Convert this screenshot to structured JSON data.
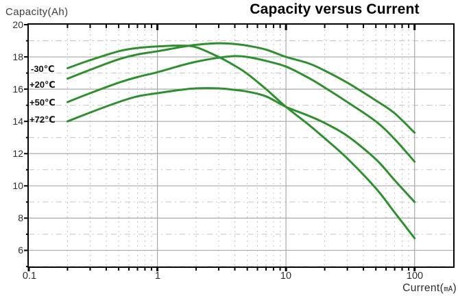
{
  "title": "Capacity versus Current",
  "y_axis_label": "Capacity(Ah)",
  "x_axis_label": {
    "prefix": "Current(",
    "unit": "mA",
    "suffix": ")"
  },
  "y_ticks": [
    "20",
    "18",
    "16",
    "14",
    "12",
    "10",
    "8",
    "6"
  ],
  "x_ticks": [
    "0.1",
    "1",
    "10",
    "100"
  ],
  "legend": {
    "items": [
      {
        "label": "-30℃"
      },
      {
        "label": "+20℃"
      },
      {
        "label": "+50℃"
      },
      {
        "label": "+72℃"
      }
    ]
  },
  "colors": {
    "curve_green": "#2f8f2f",
    "grid_major": "#a8a8a8",
    "grid_minor": "#c3c3c3",
    "axis_frame": "#000000",
    "title_text": "#000000",
    "axis_text": "#2d2d2d",
    "label_text": "#3c3c3c"
  },
  "chart_data": {
    "type": "line",
    "title": "Capacity versus Current",
    "xlabel": "Current(mA)",
    "ylabel": "Capacity(Ah)",
    "x_scale": "log",
    "xlim": [
      0.1,
      200
    ],
    "ylim": [
      5,
      20
    ],
    "grid": {
      "major_lines": "solid gray at decades and even Ah values",
      "minor_lines": "dashed light gray"
    },
    "legend_position": "inline labels at left ends of curves",
    "x": [
      0.2,
      0.3,
      0.5,
      0.7,
      1,
      1.5,
      2,
      3,
      4,
      5,
      7,
      10,
      15,
      20,
      30,
      50,
      70,
      100
    ],
    "series": [
      {
        "name": "-30℃",
        "key": "curve-minus-30c",
        "values": [
          17.3,
          17.8,
          18.35,
          18.55,
          18.65,
          18.7,
          18.6,
          18.0,
          17.45,
          16.95,
          16.0,
          14.9,
          13.8,
          12.95,
          11.7,
          9.85,
          8.35,
          6.75
        ]
      },
      {
        "name": "+20℃",
        "key": "curve-plus-20c",
        "values": [
          16.65,
          17.2,
          17.85,
          18.15,
          18.35,
          18.6,
          18.75,
          18.85,
          18.8,
          18.7,
          18.45,
          18.0,
          17.6,
          17.15,
          16.4,
          15.3,
          14.5,
          13.3
        ]
      },
      {
        "name": "+50℃",
        "key": "curve-plus-50c",
        "values": [
          15.2,
          15.75,
          16.4,
          16.75,
          17.05,
          17.45,
          17.7,
          17.95,
          18.05,
          18.0,
          17.75,
          17.4,
          16.7,
          16.1,
          15.2,
          14.0,
          12.9,
          11.5
        ]
      },
      {
        "name": "+72℃",
        "key": "curve-plus-72c",
        "values": [
          14.0,
          14.55,
          15.2,
          15.55,
          15.75,
          15.95,
          16.05,
          16.05,
          15.95,
          15.85,
          15.55,
          14.9,
          14.35,
          13.9,
          13.1,
          11.65,
          10.35,
          9.0
        ]
      }
    ]
  }
}
